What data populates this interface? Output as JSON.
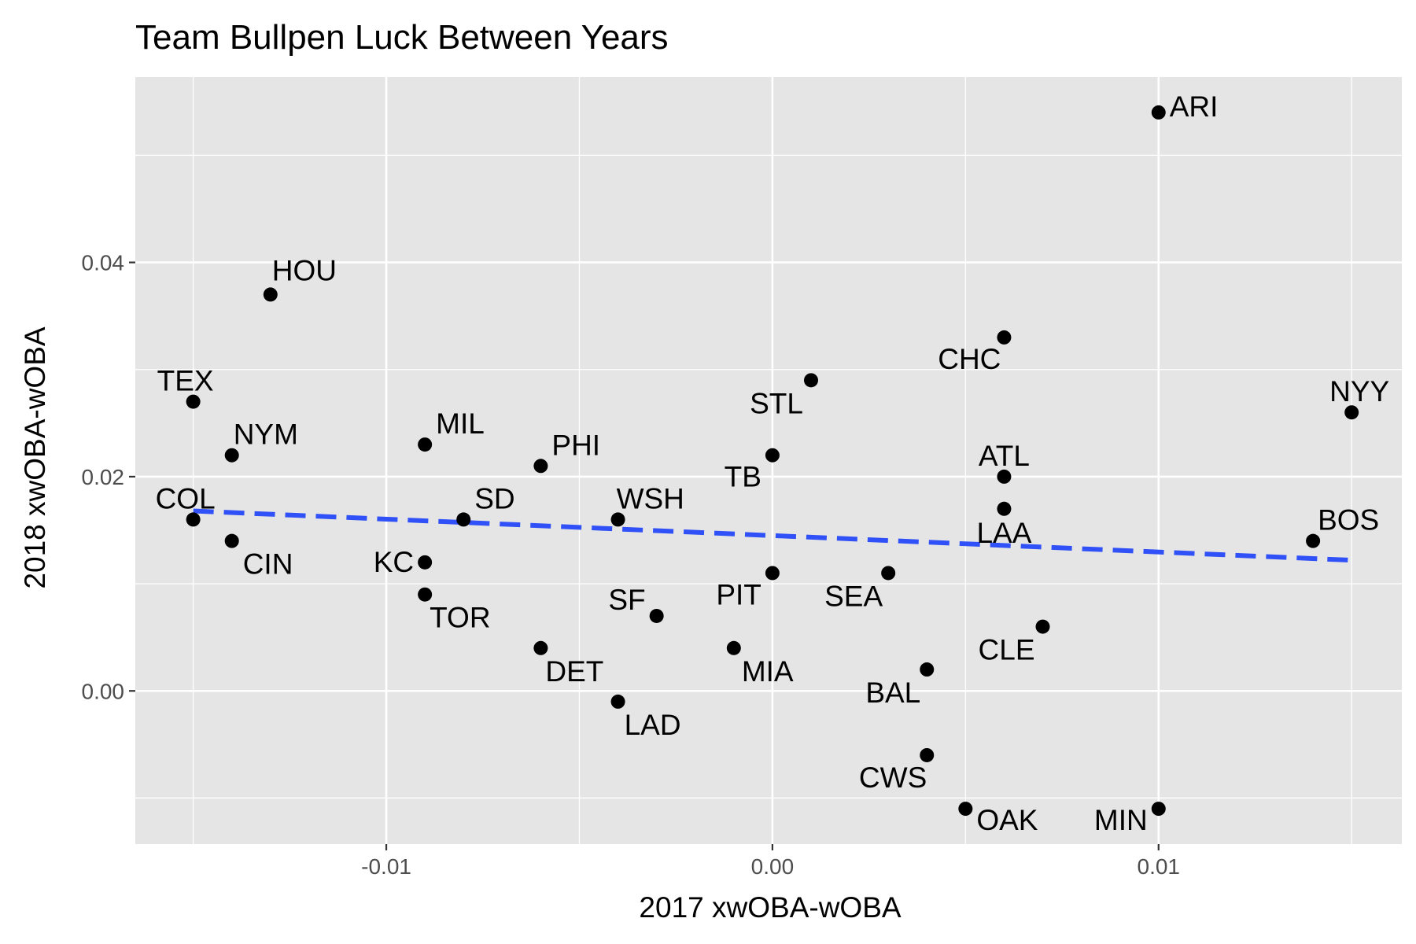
{
  "chart_data": {
    "type": "scatter",
    "title": "Team Bullpen Luck Between Years",
    "xlabel": "2017 xwOBA-wOBA",
    "ylabel": "2018 xwOBA-wOBA",
    "xlim": [
      -0.0165,
      0.0163
    ],
    "ylim": [
      -0.0143,
      0.0573
    ],
    "x_ticks": [
      -0.01,
      0.0,
      0.01
    ],
    "x_tick_labels": [
      "-0.01",
      "0.00",
      "0.01"
    ],
    "y_ticks": [
      0.0,
      0.02,
      0.04
    ],
    "y_tick_labels": [
      "0.00",
      "0.02",
      "0.04"
    ],
    "grid": true,
    "colors": {
      "panel_background": "#e5e5e5",
      "grid": "#ffffff",
      "point": "#000000",
      "trend_line": "#3050f8"
    },
    "trend_line": {
      "style": "dashed",
      "x": [
        -0.015,
        0.015
      ],
      "y": [
        0.0168,
        0.0122
      ]
    },
    "points": [
      {
        "team": "ARI",
        "x": 0.01,
        "y": 0.054
      },
      {
        "team": "HOU",
        "x": -0.013,
        "y": 0.037
      },
      {
        "team": "CHC",
        "x": 0.006,
        "y": 0.033
      },
      {
        "team": "STL",
        "x": 0.001,
        "y": 0.029
      },
      {
        "team": "TEX",
        "x": -0.015,
        "y": 0.027
      },
      {
        "team": "NYY",
        "x": 0.015,
        "y": 0.026
      },
      {
        "team": "MIL",
        "x": -0.009,
        "y": 0.023
      },
      {
        "team": "NYM",
        "x": -0.014,
        "y": 0.022
      },
      {
        "team": "TB",
        "x": 0.0,
        "y": 0.022
      },
      {
        "team": "PHI",
        "x": -0.006,
        "y": 0.021
      },
      {
        "team": "ATL",
        "x": 0.006,
        "y": 0.02
      },
      {
        "team": "LAA",
        "x": 0.006,
        "y": 0.017
      },
      {
        "team": "COL",
        "x": -0.015,
        "y": 0.016
      },
      {
        "team": "SD",
        "x": -0.008,
        "y": 0.016
      },
      {
        "team": "WSH",
        "x": -0.004,
        "y": 0.016
      },
      {
        "team": "CIN",
        "x": -0.014,
        "y": 0.014
      },
      {
        "team": "BOS",
        "x": 0.014,
        "y": 0.014
      },
      {
        "team": "KC",
        "x": -0.009,
        "y": 0.012
      },
      {
        "team": "PIT",
        "x": 0.0,
        "y": 0.011
      },
      {
        "team": "SEA",
        "x": 0.003,
        "y": 0.011
      },
      {
        "team": "TOR",
        "x": -0.009,
        "y": 0.009
      },
      {
        "team": "SF",
        "x": -0.003,
        "y": 0.007
      },
      {
        "team": "CLE",
        "x": 0.007,
        "y": 0.006
      },
      {
        "team": "DET",
        "x": -0.006,
        "y": 0.004
      },
      {
        "team": "MIA",
        "x": -0.001,
        "y": 0.004
      },
      {
        "team": "BAL",
        "x": 0.004,
        "y": 0.002
      },
      {
        "team": "LAD",
        "x": -0.004,
        "y": -0.001
      },
      {
        "team": "CWS",
        "x": 0.004,
        "y": -0.006
      },
      {
        "team": "OAK",
        "x": 0.005,
        "y": -0.011
      },
      {
        "team": "MIN",
        "x": 0.01,
        "y": -0.011
      }
    ]
  }
}
